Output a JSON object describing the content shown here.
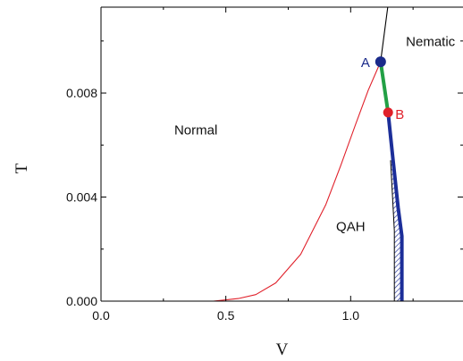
{
  "chart_data": {
    "type": "line",
    "xlabel": "V",
    "ylabel": "T",
    "xlim": [
      0.0,
      1.45
    ],
    "ylim": [
      0.0,
      0.0113
    ],
    "x_ticks": [
      "0.0",
      "0.5",
      "1.0"
    ],
    "y_ticks": [
      "0.000",
      "0.004",
      "0.008"
    ],
    "grid": false,
    "regions": [
      {
        "label": "Normal",
        "x": 0.38,
        "y": 0.0064
      },
      {
        "label": "QAH",
        "x": 1.0,
        "y": 0.0027
      },
      {
        "label": "Nematic",
        "x": 1.32,
        "y": 0.0098
      }
    ],
    "points": [
      {
        "label": "A",
        "x": 1.12,
        "y": 0.0092,
        "color": "#1a2a8a"
      },
      {
        "label": "B",
        "x": 1.15,
        "y": 0.00725,
        "color": "#e0202a"
      }
    ],
    "series": [
      {
        "style": "thin-red",
        "color": "#e0202a",
        "x": [
          0.0,
          0.45,
          0.55,
          0.62,
          0.7,
          0.8,
          0.9,
          0.96,
          1.02,
          1.07,
          1.12
        ],
        "y": [
          0.0,
          0.0,
          0.0001,
          0.00025,
          0.0007,
          0.0018,
          0.0037,
          0.0052,
          0.0068,
          0.0081,
          0.0092
        ]
      },
      {
        "style": "thin-black",
        "color": "#000000",
        "x": [
          1.12,
          1.135,
          1.15
        ],
        "y": [
          0.0092,
          0.0103,
          0.0114
        ]
      },
      {
        "style": "thick-green",
        "color": "#22a045",
        "x": [
          1.12,
          1.15
        ],
        "y": [
          0.0092,
          0.00725
        ]
      },
      {
        "style": "thick-blue",
        "color": "#1c2e99",
        "x": [
          1.15,
          1.17,
          1.19,
          1.205,
          1.205
        ],
        "y": [
          0.00725,
          0.0054,
          0.0036,
          0.0025,
          0.0
        ]
      },
      {
        "style": "thin-black-left",
        "color": "#000000",
        "x": [
          1.16,
          1.17,
          1.175,
          1.175
        ],
        "y": [
          0.0054,
          0.0036,
          0.0027,
          0.0
        ]
      }
    ],
    "hatched_region": {
      "color": "#1c2e99",
      "left_x": [
        1.16,
        1.17,
        1.175,
        1.175
      ],
      "left_y": [
        0.0054,
        0.0036,
        0.0027,
        0.0
      ],
      "right_x": [
        1.17,
        1.19,
        1.205,
        1.205
      ],
      "right_y": [
        0.0054,
        0.0036,
        0.0025,
        0.0
      ]
    }
  }
}
